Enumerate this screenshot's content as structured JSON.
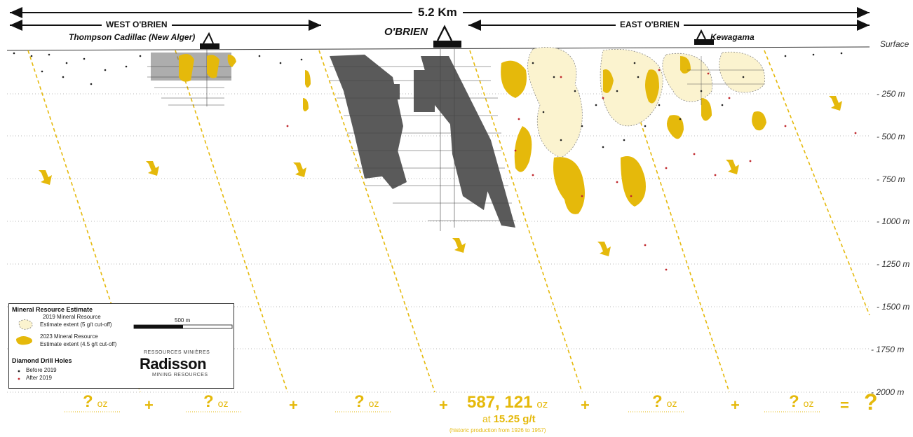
{
  "title": {
    "total_distance": "5.2 Km",
    "west": "WEST O'BRIEN",
    "east": "EAST O'BRIEN"
  },
  "mines": {
    "thompson": "Thompson Cadillac (New Alger)",
    "obrien": "O'BRIEN",
    "kewagama": "Kewagama"
  },
  "depth_labels": [
    "Surface",
    "- 250 m",
    "- 500 m",
    "- 750 m",
    "- 1000 m",
    "- 1250 m",
    "- 1500 m",
    "- 1750 m",
    "- 2000 m"
  ],
  "legend": {
    "title": "Mineral Resource Estimate",
    "item1_line1": "2019 Mineral Resource",
    "item1_line2": "Estimate extent (5  g/t cut-off)",
    "item2_line1": "2023 Mineral Resource",
    "item2_line2": "Estimate extent (4.5  g/t cut-off)",
    "scale": "500 m",
    "drill_title": "Diamond Drill Holes",
    "before": "Before 2019",
    "after": "After 2019",
    "logo_top": "RESSOURCES MINIÈRES",
    "logo_main": "Radisson",
    "logo_bottom": "MINING RESOURCES"
  },
  "bottom": {
    "q": "?",
    "oz": "oz",
    "plus": "+",
    "equals": "=",
    "total_q": "?",
    "production": "587, 121",
    "production_unit": "oz",
    "grade_prefix": "at",
    "grade": "15.25 g/t",
    "note": "(historic production from 1926 to 1957)"
  },
  "colors": {
    "gold": "#e5b90b",
    "resource_2019": "#fbf3cf",
    "grey_workings": "#555555",
    "dot_before": "#222222",
    "dot_after": "#c0282d"
  }
}
